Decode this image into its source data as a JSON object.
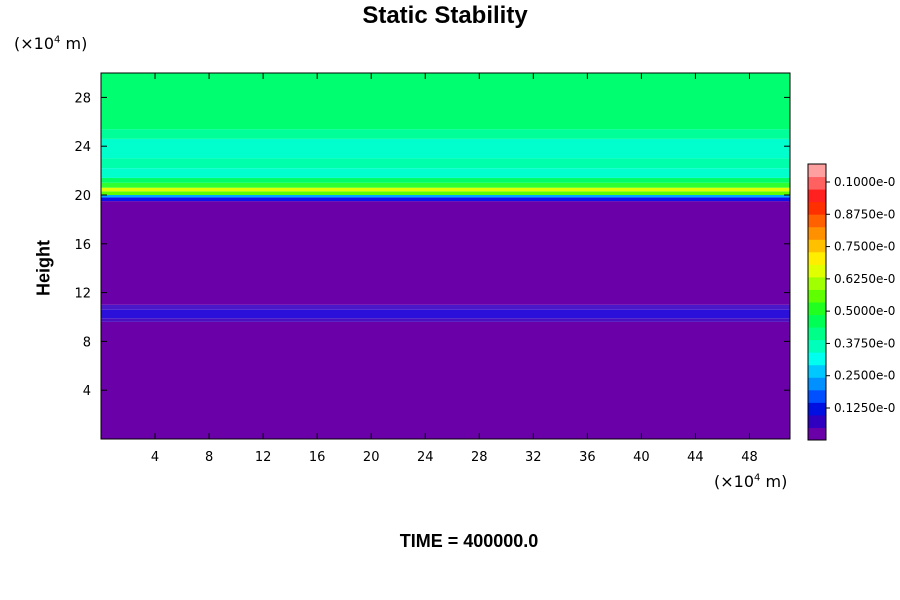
{
  "chart_data": {
    "type": "heatmap",
    "title": "Static Stability",
    "ylabel": "Height",
    "xlabel": "",
    "x_unit": {
      "base": "(×10",
      "exp": "4",
      "tail": " m)"
    },
    "y_unit": {
      "base": "(×10",
      "exp": "4",
      "tail": " m)"
    },
    "xlim": [
      0,
      51
    ],
    "ylim": [
      0,
      30
    ],
    "x_ticks": [
      "4",
      "8",
      "12",
      "16",
      "20",
      "24",
      "28",
      "32",
      "36",
      "40",
      "44",
      "48"
    ],
    "y_ticks": [
      "4",
      "8",
      "12",
      "16",
      "20",
      "24",
      "28"
    ],
    "colorbar": {
      "labels": [
        "0.1000e-0",
        "0.8750e-0",
        "0.7500e-0",
        "0.6250e-0",
        "0.5000e-0",
        "0.3750e-0",
        "0.2500e-0",
        "0.1250e-0"
      ],
      "colors": [
        "#6a00a8",
        "#3000c0",
        "#0010e0",
        "#0050ff",
        "#0090ff",
        "#00c8ff",
        "#00ffee",
        "#00ffbb",
        "#00ff88",
        "#00ff55",
        "#20ff20",
        "#60ff00",
        "#a0ff00",
        "#e0ff00",
        "#ffee00",
        "#ffc000",
        "#ff9000",
        "#ff6000",
        "#ff3000",
        "#ff2020",
        "#ff6060",
        "#ffa0a0"
      ]
    },
    "bands": [
      {
        "y0": 0,
        "y1": 9.6,
        "color": "#6a00a8"
      },
      {
        "y0": 9.6,
        "y1": 9.9,
        "color": "#4a10c0"
      },
      {
        "y0": 9.9,
        "y1": 10.6,
        "color": "#2a10d8"
      },
      {
        "y0": 10.6,
        "y1": 11.0,
        "color": "#4a18c8"
      },
      {
        "y0": 11.0,
        "y1": 19.5,
        "color": "#6a00a8"
      },
      {
        "y0": 19.5,
        "y1": 19.8,
        "color": "#1010e8"
      },
      {
        "y0": 19.8,
        "y1": 20.0,
        "color": "#00a8ff"
      },
      {
        "y0": 20.0,
        "y1": 20.3,
        "color": "#60ff00"
      },
      {
        "y0": 20.3,
        "y1": 20.6,
        "color": "#e0ff00"
      },
      {
        "y0": 20.6,
        "y1": 21.0,
        "color": "#30ff30"
      },
      {
        "y0": 21.0,
        "y1": 21.4,
        "color": "#00ff66"
      },
      {
        "y0": 21.4,
        "y1": 22.2,
        "color": "#00ffcc"
      },
      {
        "y0": 22.2,
        "y1": 23.0,
        "color": "#00ffaa"
      },
      {
        "y0": 23.0,
        "y1": 24.6,
        "color": "#00ffcc"
      },
      {
        "y0": 24.6,
        "y1": 25.4,
        "color": "#00ff99"
      },
      {
        "y0": 25.4,
        "y1": 30.0,
        "color": "#00ff70"
      }
    ]
  },
  "time_label": "TIME = 400000.0"
}
